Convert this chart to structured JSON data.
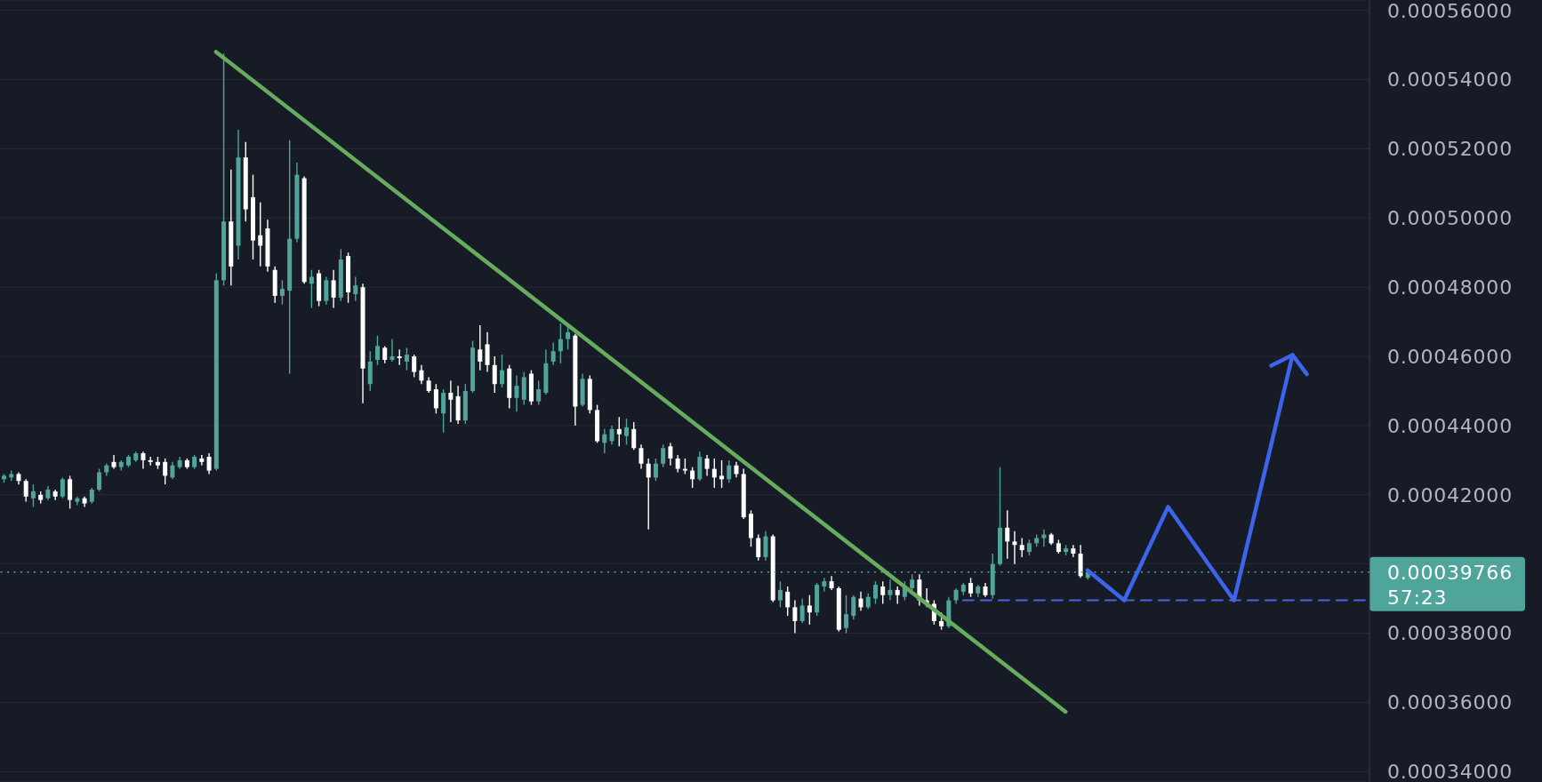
{
  "chart_data": {
    "type": "candlestick",
    "categories": [
      null,
      null,
      null,
      null,
      null,
      null,
      null,
      null,
      null,
      null,
      null,
      null,
      null,
      null,
      null,
      null,
      null,
      null,
      null,
      null,
      null,
      null,
      null,
      null,
      null,
      null,
      null,
      null,
      null,
      null,
      null,
      null,
      null,
      null,
      null,
      null,
      null,
      null,
      null,
      null,
      null,
      null,
      null,
      null,
      null,
      null,
      null,
      null,
      null,
      null,
      null,
      null,
      null,
      null,
      null,
      null,
      null,
      null,
      null,
      null,
      null,
      null,
      null,
      null,
      null,
      null,
      null,
      null,
      null,
      null,
      null,
      null,
      null,
      null,
      null,
      null,
      null,
      null,
      null,
      null,
      null,
      null,
      null,
      null,
      null,
      null,
      null,
      null,
      null,
      null,
      null,
      null,
      null,
      null,
      null,
      null,
      null,
      null,
      null,
      null,
      null,
      null,
      null,
      null,
      null,
      null,
      null,
      null,
      null,
      null,
      null,
      null,
      null,
      null,
      null,
      null,
      null,
      null,
      null,
      null,
      null,
      null,
      null,
      null,
      null,
      null,
      null,
      null,
      null,
      null,
      null,
      null,
      null,
      null,
      null,
      null,
      null,
      null,
      null,
      null,
      null,
      null,
      null,
      null,
      null,
      null,
      null,
      null,
      null,
      null,
      null,
      null,
      null,
      null,
      null,
      null,
      null,
      null,
      null,
      null,
      null,
      null,
      null,
      null,
      null,
      null,
      null,
      null,
      null,
      null,
      null,
      null,
      null,
      null,
      null,
      null,
      null,
      null,
      null,
      null,
      null,
      null,
      null,
      null,
      null,
      null,
      null
    ],
    "ohlc": [
      [
        0.0004245,
        0.000426,
        0.0004235,
        0.0004255
      ],
      [
        0.000425,
        0.000427,
        0.000424,
        0.000426
      ],
      [
        0.000426,
        0.0004265,
        0.000423,
        0.000424
      ],
      [
        0.000424,
        0.0004245,
        0.000418,
        0.0004195
      ],
      [
        0.000419,
        0.000423,
        0.0004165,
        0.000421
      ],
      [
        0.00042,
        0.000421,
        0.0004175,
        0.0004185
      ],
      [
        0.000419,
        0.0004225,
        0.0004185,
        0.0004215
      ],
      [
        0.000421,
        0.0004215,
        0.0004185,
        0.0004195
      ],
      [
        0.0004195,
        0.000425,
        0.000419,
        0.0004245
      ],
      [
        0.0004245,
        0.0004255,
        0.000416,
        0.0004185
      ],
      [
        0.000418,
        0.0004195,
        0.000417,
        0.000419
      ],
      [
        0.000419,
        0.0004195,
        0.0004165,
        0.0004175
      ],
      [
        0.000418,
        0.000422,
        0.0004175,
        0.0004215
      ],
      [
        0.0004215,
        0.0004275,
        0.000421,
        0.0004265
      ],
      [
        0.0004265,
        0.000429,
        0.0004255,
        0.0004285
      ],
      [
        0.0004295,
        0.0004315,
        0.0004275,
        0.000428
      ],
      [
        0.000428,
        0.00043,
        0.000427,
        0.0004295
      ],
      [
        0.0004285,
        0.0004315,
        0.000428,
        0.000431
      ],
      [
        0.00043,
        0.0004325,
        0.0004295,
        0.000432
      ],
      [
        0.000432,
        0.0004325,
        0.0004275,
        0.00043
      ],
      [
        0.00043,
        0.000431,
        0.0004285,
        0.0004295
      ],
      [
        0.0004295,
        0.000431,
        0.0004275,
        0.0004285
      ],
      [
        0.0004295,
        0.0004305,
        0.000423,
        0.0004255
      ],
      [
        0.000425,
        0.0004295,
        0.0004245,
        0.0004285
      ],
      [
        0.000428,
        0.000431,
        0.0004275,
        0.00043
      ],
      [
        0.00043,
        0.0004305,
        0.0004275,
        0.000428
      ],
      [
        0.000428,
        0.0004315,
        0.0004275,
        0.000431
      ],
      [
        0.0004305,
        0.0004315,
        0.0004285,
        0.0004295
      ],
      [
        0.000431,
        0.000432,
        0.000426,
        0.000427
      ],
      [
        0.0004275,
        0.000484,
        0.000427,
        0.000482
      ],
      [
        0.000482,
        0.0005475,
        0.0004805,
        0.000499
      ],
      [
        0.000499,
        0.000514,
        0.0004805,
        0.000486
      ],
      [
        0.000492,
        0.0005255,
        0.000488,
        0.0005175
      ],
      [
        0.0005175,
        0.000522,
        0.000499,
        0.0005025
      ],
      [
        0.000506,
        0.0005125,
        0.000488,
        0.0004935
      ],
      [
        0.000495,
        0.0005045,
        0.000486,
        0.000492
      ],
      [
        0.000497,
        0.0004995,
        0.0004845,
        0.000486
      ],
      [
        0.000485,
        0.000486,
        0.0004755,
        0.0004775
      ],
      [
        0.0004775,
        0.000482,
        0.000475,
        0.0004795
      ],
      [
        0.000479,
        0.0005225,
        0.000455,
        0.000494
      ],
      [
        0.000494,
        0.000516,
        0.000493,
        0.0005125
      ],
      [
        0.0005115,
        0.000512,
        0.000481,
        0.0004815
      ],
      [
        0.000481,
        0.000485,
        0.000474,
        0.000483
      ],
      [
        0.000484,
        0.000485,
        0.0004745,
        0.000476
      ],
      [
        0.000476,
        0.000483,
        0.000475,
        0.000482
      ],
      [
        0.000482,
        0.000485,
        0.000474,
        0.000477
      ],
      [
        0.000477,
        0.000491,
        0.000476,
        0.000488
      ],
      [
        0.000489,
        0.00049,
        0.0004755,
        0.0004785
      ],
      [
        0.000478,
        0.000483,
        0.000476,
        0.0004805
      ],
      [
        0.00048,
        0.000481,
        0.0004465,
        0.0004565
      ],
      [
        0.000452,
        0.0004615,
        0.00045,
        0.0004585
      ],
      [
        0.000459,
        0.000466,
        0.0004575,
        0.000463
      ],
      [
        0.0004625,
        0.000463,
        0.000458,
        0.000459
      ],
      [
        0.000459,
        0.000465,
        0.0004585,
        0.00046
      ],
      [
        0.00046,
        0.000462,
        0.0004575,
        0.0004595
      ],
      [
        0.0004585,
        0.0004625,
        0.000456,
        0.0004605
      ],
      [
        0.00046,
        0.0004605,
        0.000454,
        0.0004555
      ],
      [
        0.000456,
        0.0004575,
        0.000452,
        0.000453
      ],
      [
        0.000453,
        0.000454,
        0.0004495,
        0.00045
      ],
      [
        0.0004505,
        0.000452,
        0.0004435,
        0.000445
      ],
      [
        0.0004435,
        0.0004505,
        0.000438,
        0.0004495
      ],
      [
        0.0004495,
        0.000453,
        0.000441,
        0.0004475
      ],
      [
        0.0004485,
        0.0004515,
        0.0004405,
        0.0004415
      ],
      [
        0.0004415,
        0.000452,
        0.0004405,
        0.00045
      ],
      [
        0.00045,
        0.0004645,
        0.0004495,
        0.0004625
      ],
      [
        0.000462,
        0.000469,
        0.000456,
        0.0004585
      ],
      [
        0.0004635,
        0.000467,
        0.0004555,
        0.0004575
      ],
      [
        0.0004575,
        0.00046,
        0.0004495,
        0.000452
      ],
      [
        0.000452,
        0.0004605,
        0.000451,
        0.000456
      ],
      [
        0.0004565,
        0.0004575,
        0.000445,
        0.000448
      ],
      [
        0.000448,
        0.0004545,
        0.000444,
        0.0004515
      ],
      [
        0.0004475,
        0.0004555,
        0.000446,
        0.000454
      ],
      [
        0.000455,
        0.000456,
        0.000446,
        0.000447
      ],
      [
        0.000447,
        0.000453,
        0.000446,
        0.0004505
      ],
      [
        0.0004495,
        0.000462,
        0.000449,
        0.000458
      ],
      [
        0.0004585,
        0.000464,
        0.0004575,
        0.0004615
      ],
      [
        0.0004615,
        0.0004695,
        0.000458,
        0.000465
      ],
      [
        0.000465,
        0.0004685,
        0.000462,
        0.000467
      ],
      [
        0.000466,
        0.0004665,
        0.00044,
        0.0004455
      ],
      [
        0.000446,
        0.000455,
        0.0004455,
        0.0004535
      ],
      [
        0.0004535,
        0.0004545,
        0.0004435,
        0.0004445
      ],
      [
        0.0004445,
        0.000446,
        0.000435,
        0.0004355
      ],
      [
        0.000435,
        0.000439,
        0.000432,
        0.0004375
      ],
      [
        0.0004355,
        0.00044,
        0.0004345,
        0.000439
      ],
      [
        0.000439,
        0.0004425,
        0.000434,
        0.0004375
      ],
      [
        0.000437,
        0.000442,
        0.0004345,
        0.0004395
      ],
      [
        0.000439,
        0.000441,
        0.000433,
        0.0004335
      ],
      [
        0.0004335,
        0.0004345,
        0.0004275,
        0.000429
      ],
      [
        0.000429,
        0.0004305,
        0.00041,
        0.000425
      ],
      [
        0.000425,
        0.0004305,
        0.000424,
        0.000429
      ],
      [
        0.000429,
        0.0004345,
        0.000428,
        0.0004335
      ],
      [
        0.000434,
        0.000435,
        0.0004285,
        0.0004305
      ],
      [
        0.0004305,
        0.0004315,
        0.0004265,
        0.0004275
      ],
      [
        0.0004275,
        0.0004305,
        0.000426,
        0.000427
      ],
      [
        0.000427,
        0.000428,
        0.000422,
        0.0004245
      ],
      [
        0.0004245,
        0.0004325,
        0.000424,
        0.000431
      ],
      [
        0.0004305,
        0.0004315,
        0.0004255,
        0.0004275
      ],
      [
        0.0004275,
        0.0004305,
        0.000422,
        0.000425
      ],
      [
        0.0004255,
        0.00043,
        0.000422,
        0.0004245
      ],
      [
        0.0004245,
        0.00043,
        0.0004235,
        0.0004285
      ],
      [
        0.0004285,
        0.0004295,
        0.000425,
        0.000426
      ],
      [
        0.000426,
        0.0004275,
        0.000413,
        0.0004135
      ],
      [
        0.0004145,
        0.0004155,
        0.000405,
        0.0004075
      ],
      [
        0.0004075,
        0.0004085,
        0.000401,
        0.000402
      ],
      [
        0.000402,
        0.0004095,
        0.000401,
        0.000408
      ],
      [
        0.000408,
        0.0004085,
        0.000389,
        0.0003895
      ],
      [
        0.0003895,
        0.000395,
        0.0003875,
        0.0003925
      ],
      [
        0.000392,
        0.0003935,
        0.000385,
        0.0003875
      ],
      [
        0.0003875,
        0.0003895,
        0.00038,
        0.0003835
      ],
      [
        0.0003835,
        0.00039,
        0.000383,
        0.000388
      ],
      [
        0.000388,
        0.000391,
        0.0003825,
        0.000386
      ],
      [
        0.000386,
        0.0003945,
        0.000385,
        0.000394
      ],
      [
        0.0003935,
        0.000396,
        0.000392,
        0.000395
      ],
      [
        0.000395,
        0.0003965,
        0.0003925,
        0.000393
      ],
      [
        0.000393,
        0.0003935,
        0.0003805,
        0.000381
      ],
      [
        0.0003815,
        0.000391,
        0.00038,
        0.0003855
      ],
      [
        0.000385,
        0.000391,
        0.000384,
        0.0003905
      ],
      [
        0.00039,
        0.000392,
        0.0003865,
        0.0003875
      ],
      [
        0.0003875,
        0.0003915,
        0.000387,
        0.0003905
      ],
      [
        0.00039,
        0.000395,
        0.0003885,
        0.000394
      ],
      [
        0.0003935,
        0.000395,
        0.0003885,
        0.000391
      ],
      [
        0.000391,
        0.0003955,
        0.0003895,
        0.0003925
      ],
      [
        0.0003925,
        0.0003935,
        0.0003885,
        0.000391
      ],
      [
        0.0003905,
        0.000395,
        0.0003895,
        0.0003935
      ],
      [
        0.000393,
        0.000397,
        0.000392,
        0.0003955
      ],
      [
        0.0003955,
        0.000397,
        0.000388,
        0.0003895
      ],
      [
        0.0003895,
        0.000393,
        0.0003875,
        0.0003885
      ],
      [
        0.0003885,
        0.0003895,
        0.0003825,
        0.0003835
      ],
      [
        0.0003835,
        0.000386,
        0.000381,
        0.000382
      ],
      [
        0.000382,
        0.0003905,
        0.0003815,
        0.0003895
      ],
      [
        0.0003895,
        0.000393,
        0.0003885,
        0.0003925
      ],
      [
        0.000392,
        0.0003945,
        0.000391,
        0.000394
      ],
      [
        0.0003945,
        0.000396,
        0.0003905,
        0.0003915
      ],
      [
        0.0003915,
        0.000394,
        0.0003905,
        0.0003935
      ],
      [
        0.0003935,
        0.0003945,
        0.0003905,
        0.000391
      ],
      [
        0.000391,
        0.000403,
        0.00039,
        0.0004
      ],
      [
        0.0004,
        0.000428,
        0.0003995,
        0.0004105
      ],
      [
        0.0004105,
        0.0004155,
        0.0004015,
        0.0004065
      ],
      [
        0.0004065,
        0.0004095,
        0.0004,
        0.0004055
      ],
      [
        0.0004055,
        0.0004075,
        0.000402,
        0.000404
      ],
      [
        0.0004035,
        0.000407,
        0.0004025,
        0.000406
      ],
      [
        0.000406,
        0.0004085,
        0.000405,
        0.0004075
      ],
      [
        0.0004075,
        0.00041,
        0.000405,
        0.0004085
      ],
      [
        0.0004085,
        0.000409,
        0.0004055,
        0.000406
      ],
      [
        0.000406,
        0.000407,
        0.000403,
        0.0004035
      ],
      [
        0.0004035,
        0.0004055,
        0.0004025,
        0.0004045
      ],
      [
        0.0004045,
        0.0004055,
        0.000402,
        0.000403
      ],
      [
        0.000403,
        0.0004055,
        0.000396,
        0.0003965
      ],
      [
        0.000396,
        0.000398,
        0.0003955,
        0.00039766
      ],
      null,
      null,
      null,
      null,
      null,
      null,
      null,
      null,
      null,
      null,
      null,
      null,
      null,
      null,
      null,
      null,
      null,
      null,
      null,
      null,
      null,
      null,
      null,
      null,
      null,
      null,
      null,
      null,
      null,
      null,
      null,
      null,
      null,
      null,
      null,
      null,
      null,
      null
    ],
    "colors": [
      "#4fa59a",
      "#4fa59a",
      "#ffffff",
      "#ffffff",
      "#4fa59a",
      "#ffffff",
      "#4fa59a",
      "#ffffff",
      "#4fa59a",
      "#ffffff",
      "#4fa59a",
      "#ffffff",
      "#4fa59a",
      "#4fa59a",
      "#4fa59a",
      "#ffffff",
      "#4fa59a",
      "#4fa59a",
      "#4fa59a",
      "#ffffff",
      "#ffffff",
      "#ffffff",
      "#ffffff",
      "#4fa59a",
      "#4fa59a",
      "#ffffff",
      "#4fa59a",
      "#ffffff",
      "#ffffff",
      "#4fa59a",
      "#4fa59a",
      "#ffffff",
      "#4fa59a",
      "#ffffff",
      "#ffffff",
      "#ffffff",
      "#ffffff",
      "#ffffff",
      "#4fa59a",
      "#4fa59a",
      "#4fa59a",
      "#ffffff",
      "#4fa59a",
      "#ffffff",
      "#4fa59a",
      "#ffffff",
      "#4fa59a",
      "#ffffff",
      "#4fa59a",
      "#ffffff",
      "#4fa59a",
      "#4fa59a",
      "#ffffff",
      "#4fa59a",
      "#ffffff",
      "#4fa59a",
      "#ffffff",
      "#ffffff",
      "#ffffff",
      "#ffffff",
      "#4fa59a",
      "#ffffff",
      "#ffffff",
      "#4fa59a",
      "#4fa59a",
      "#ffffff",
      "#ffffff",
      "#ffffff",
      "#4fa59a",
      "#ffffff",
      "#4fa59a",
      "#4fa59a",
      "#ffffff",
      "#4fa59a",
      "#4fa59a",
      "#4fa59a",
      "#4fa59a",
      "#4fa59a",
      "#ffffff",
      "#4fa59a",
      "#ffffff",
      "#ffffff",
      "#4fa59a",
      "#4fa59a",
      "#ffffff",
      "#4fa59a",
      "#ffffff",
      "#ffffff",
      "#ffffff",
      "#4fa59a",
      "#4fa59a",
      "#ffffff",
      "#ffffff",
      "#ffffff",
      "#ffffff",
      "#4fa59a",
      "#ffffff",
      "#ffffff",
      "#ffffff",
      "#4fa59a",
      "#ffffff",
      "#ffffff",
      "#ffffff",
      "#ffffff",
      "#4fa59a",
      "#ffffff",
      "#4fa59a",
      "#ffffff",
      "#ffffff",
      "#4fa59a",
      "#ffffff",
      "#4fa59a",
      "#4fa59a",
      "#ffffff",
      "#ffffff",
      "#4fa59a",
      "#4fa59a",
      "#ffffff",
      "#4fa59a",
      "#4fa59a",
      "#ffffff",
      "#4fa59a",
      "#ffffff",
      "#4fa59a",
      "#4fa59a",
      "#ffffff",
      "#ffffff",
      "#ffffff",
      "#ffffff",
      "#4fa59a",
      "#4fa59a",
      "#4fa59a",
      "#ffffff",
      "#4fa59a",
      "#ffffff",
      "#4fa59a",
      "#4fa59a",
      "#ffffff",
      "#ffffff",
      "#ffffff",
      "#4fa59a",
      "#4fa59a",
      "#4fa59a",
      "#ffffff",
      "#ffffff",
      "#4fa59a",
      "#ffffff",
      "#ffffff",
      "#4fa59a",
      null,
      null,
      null,
      null,
      null,
      null,
      null,
      null,
      null,
      null,
      null,
      null,
      null,
      null,
      null,
      null,
      null,
      null,
      null,
      null,
      null,
      null,
      null,
      null,
      null,
      null,
      null,
      null,
      null,
      null,
      null,
      null,
      null,
      null,
      null,
      null,
      null,
      null
    ],
    "series": [
      {
        "type": "line",
        "color": "#66ac5e",
        "values": [
          null,
          null,
          null,
          null,
          null,
          null,
          null,
          null,
          null,
          null,
          null,
          null,
          null,
          null,
          null,
          null,
          null,
          null,
          null,
          null,
          null,
          null,
          null,
          null,
          null,
          null,
          null,
          null,
          null,
          0.000548,
          null,
          null,
          null,
          null,
          null,
          null,
          null,
          null,
          null,
          null,
          null,
          null,
          null,
          null,
          null,
          null,
          null,
          null,
          null,
          null,
          null,
          null,
          null,
          null,
          null,
          null,
          null,
          null,
          null,
          null,
          null,
          null,
          null,
          null,
          null,
          null,
          null,
          null,
          null,
          null,
          null,
          null,
          null,
          null,
          null,
          null,
          null,
          null,
          null,
          null,
          null,
          null,
          null,
          null,
          null,
          null,
          null,
          null,
          null,
          null,
          null,
          null,
          null,
          null,
          null,
          null,
          null,
          null,
          null,
          null,
          null,
          null,
          null,
          null,
          null,
          null,
          null,
          null,
          null,
          null,
          null,
          null,
          null,
          null,
          null,
          null,
          null,
          null,
          null,
          null,
          null,
          null,
          null,
          null,
          null,
          null,
          null,
          null,
          null,
          null,
          null,
          null,
          null,
          null,
          null,
          null,
          null,
          null,
          null,
          null,
          null,
          null,
          null,
          null,
          null,
          0.0003573,
          null,
          null,
          null,
          null,
          null,
          null,
          null,
          null,
          null,
          null,
          null,
          null,
          null,
          null,
          null,
          null,
          null,
          null,
          null,
          null,
          null,
          null,
          null,
          null,
          null,
          null,
          null,
          null,
          null,
          null,
          null,
          null,
          null,
          null,
          null,
          null,
          null,
          null,
          null,
          null,
          null
        ]
      },
      {
        "type": "line",
        "color": "#3d64ec",
        "line_style": "solid",
        "values": [
          null,
          null,
          null,
          null,
          null,
          null,
          null,
          null,
          null,
          null,
          null,
          null,
          null,
          null,
          null,
          null,
          null,
          null,
          null,
          null,
          null,
          null,
          null,
          null,
          null,
          null,
          null,
          null,
          null,
          null,
          null,
          null,
          null,
          null,
          null,
          null,
          null,
          null,
          null,
          null,
          null,
          null,
          null,
          null,
          null,
          null,
          null,
          null,
          null,
          null,
          null,
          null,
          null,
          null,
          null,
          null,
          null,
          null,
          null,
          null,
          null,
          null,
          null,
          null,
          null,
          null,
          null,
          null,
          null,
          null,
          null,
          null,
          null,
          null,
          null,
          null,
          null,
          null,
          null,
          null,
          null,
          null,
          null,
          null,
          null,
          null,
          null,
          null,
          null,
          null,
          null,
          null,
          null,
          null,
          null,
          null,
          null,
          null,
          null,
          null,
          null,
          null,
          null,
          null,
          null,
          null,
          null,
          null,
          null,
          null,
          null,
          null,
          null,
          null,
          null,
          null,
          null,
          null,
          null,
          null,
          null,
          null,
          null,
          null,
          null,
          null,
          null,
          null,
          null,
          null,
          null,
          null,
          null,
          null,
          null,
          null,
          null,
          null,
          null,
          null,
          null,
          null,
          null,
          null,
          null,
          null,
          null,
          null,
          0.0003982,
          null,
          null,
          null,
          null,
          0.0003895,
          null,
          null,
          null,
          null,
          null,
          0.0004165,
          null,
          null,
          null,
          null,
          null,
          null,
          null,
          null,
          0.0003895,
          null,
          null,
          null,
          null,
          null,
          null,
          null,
          0.0004604,
          null,
          null,
          null,
          null,
          null,
          null,
          null,
          null,
          null,
          null
        ]
      },
      {
        "type": "line",
        "color": "#4a64e0",
        "line_style": "dashed",
        "values": [
          null,
          null,
          null,
          null,
          null,
          null,
          null,
          null,
          null,
          null,
          null,
          null,
          null,
          null,
          null,
          null,
          null,
          null,
          null,
          null,
          null,
          null,
          null,
          null,
          null,
          null,
          null,
          null,
          null,
          null,
          null,
          null,
          null,
          null,
          null,
          null,
          null,
          null,
          null,
          null,
          null,
          null,
          null,
          null,
          null,
          null,
          null,
          null,
          null,
          null,
          null,
          null,
          null,
          null,
          null,
          null,
          null,
          null,
          null,
          null,
          null,
          null,
          null,
          null,
          null,
          null,
          null,
          null,
          null,
          null,
          null,
          null,
          null,
          null,
          null,
          null,
          null,
          null,
          null,
          null,
          null,
          null,
          null,
          null,
          null,
          null,
          null,
          null,
          null,
          null,
          null,
          null,
          null,
          null,
          null,
          null,
          null,
          null,
          null,
          null,
          null,
          null,
          null,
          null,
          null,
          null,
          null,
          null,
          null,
          null,
          null,
          null,
          null,
          null,
          null,
          null,
          null,
          null,
          null,
          null,
          null,
          null,
          null,
          null,
          null,
          null,
          null,
          null,
          null,
          null,
          null,
          0.0003895,
          null,
          null,
          null,
          null,
          null,
          null,
          null,
          null,
          null,
          null,
          null,
          null,
          null,
          null,
          null,
          null,
          null,
          null,
          null,
          null,
          null,
          null,
          null,
          null,
          null,
          null,
          null,
          null,
          null,
          null,
          null,
          null,
          null,
          null,
          null,
          null,
          null,
          null,
          null,
          null,
          null,
          null,
          null,
          null,
          null,
          null,
          null,
          null,
          null,
          null,
          null,
          null,
          null,
          null,
          0.0003895
        ]
      }
    ],
    "ylim": [
      0.000337,
      0.000563
    ],
    "yticks": [
      {
        "value": 0.00034,
        "label": "0.00034000"
      },
      {
        "value": 0.00036,
        "label": "0.00036000"
      },
      {
        "value": 0.00038,
        "label": "0.00038000"
      },
      {
        "value": 0.0004,
        "label": null
      },
      {
        "value": 0.00042,
        "label": "0.00042000"
      },
      {
        "value": 0.00044,
        "label": "0.00044000"
      },
      {
        "value": 0.00046,
        "label": "0.00046000"
      },
      {
        "value": 0.00048,
        "label": "0.00048000"
      },
      {
        "value": 0.0005,
        "label": "0.00050000"
      },
      {
        "value": 0.00052,
        "label": "0.00052000"
      },
      {
        "value": 0.00054,
        "label": "0.00054000"
      },
      {
        "value": 0.00056,
        "label": "0.00056000"
      }
    ],
    "grid": "y",
    "tick_labels": "y",
    "ref_lines": [
      {
        "axis": "y",
        "value": 0.00039766,
        "label": "0.00039766",
        "color": "#4fa59a",
        "line_style": "dotted"
      }
    ],
    "annotations": [
      "57:23"
    ]
  }
}
